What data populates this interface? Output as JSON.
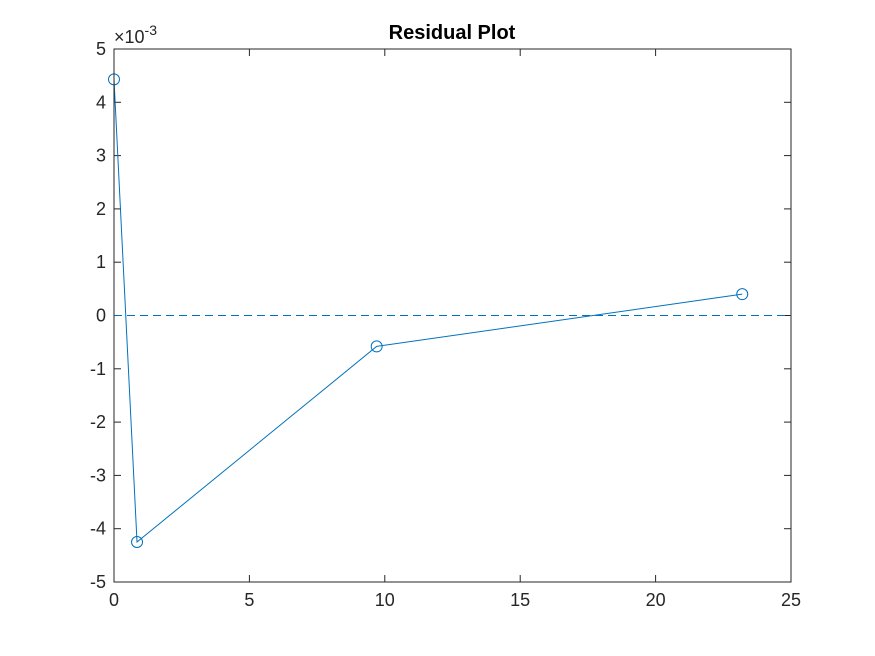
{
  "chart_data": {
    "type": "line",
    "title": "Residual Plot",
    "xlabel": "",
    "ylabel": "",
    "xlim": [
      0,
      25
    ],
    "ylim": [
      -0.005,
      0.005
    ],
    "x_ticks": [
      0,
      5,
      10,
      15,
      20,
      25
    ],
    "x_tick_labels": [
      "0",
      "5",
      "10",
      "15",
      "20",
      "25"
    ],
    "y_ticks": [
      -5,
      -4,
      -3,
      -2,
      -1,
      0,
      1,
      2,
      3,
      4,
      5
    ],
    "y_tick_labels": [
      "-5",
      "-4",
      "-3",
      "-2",
      "-1",
      "0",
      "1",
      "2",
      "3",
      "4",
      "5"
    ],
    "y_exponent": {
      "base": "×10",
      "power": "-3"
    },
    "grid": false,
    "series": [
      {
        "x": [
          0.0,
          0.85,
          9.7,
          23.2
        ],
        "y": [
          0.00443,
          -0.00425,
          -0.00058,
          0.0004
        ],
        "marker": "circle",
        "color": "#0072BD"
      }
    ],
    "reference_line": {
      "y": 0,
      "style": "dashed",
      "color": "#0072BD"
    }
  }
}
